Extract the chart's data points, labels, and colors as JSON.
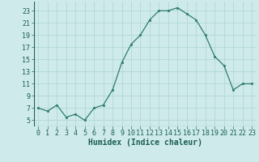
{
  "x": [
    0,
    1,
    2,
    3,
    4,
    5,
    6,
    7,
    8,
    9,
    10,
    11,
    12,
    13,
    14,
    15,
    16,
    17,
    18,
    19,
    20,
    21,
    22,
    23
  ],
  "y": [
    7.0,
    6.5,
    7.5,
    5.5,
    6.0,
    5.0,
    7.0,
    7.5,
    10.0,
    14.5,
    17.5,
    19.0,
    21.5,
    23.0,
    23.0,
    23.5,
    22.5,
    21.5,
    19.0,
    15.5,
    14.0,
    10.0,
    11.0,
    11.0
  ],
  "xlabel": "Humidex (Indice chaleur)",
  "xlim_min": -0.5,
  "xlim_max": 23.5,
  "ylim_min": 4,
  "ylim_max": 24.5,
  "yticks": [
    5,
    7,
    9,
    11,
    13,
    15,
    17,
    19,
    21,
    23
  ],
  "xticks": [
    0,
    1,
    2,
    3,
    4,
    5,
    6,
    7,
    8,
    9,
    10,
    11,
    12,
    13,
    14,
    15,
    16,
    17,
    18,
    19,
    20,
    21,
    22,
    23
  ],
  "line_color": "#2e7d6e",
  "marker_color": "#2e7d6e",
  "background_color": "#ceeaea",
  "grid_color": "#aed4d4",
  "label_color": "#1a5f52",
  "xlabel_fontsize": 7,
  "tick_fontsize": 6,
  "linewidth": 0.9,
  "markersize": 2.0
}
